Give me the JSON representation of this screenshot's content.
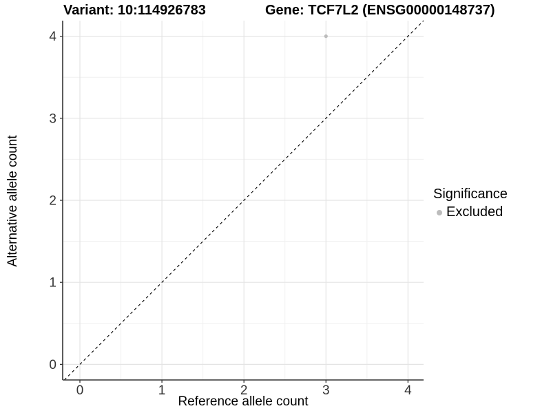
{
  "header": {
    "variant_title": "Variant: 10:114926783",
    "gene_title": "Gene: TCF7L2 (ENSG00000148737)"
  },
  "legend": {
    "title": "Significance",
    "items": [
      {
        "label": "Excluded",
        "marker": "circle-icon",
        "color": "#bcbcbc"
      }
    ]
  },
  "chart_data": {
    "type": "scatter",
    "title": "Variant: 10:114926783   Gene: TCF7L2 (ENSG00000148737)",
    "xlabel": "Reference allele count",
    "ylabel": "Alternative allele count",
    "xlim": [
      -0.21,
      4.19
    ],
    "ylim": [
      -0.19,
      4.19
    ],
    "xticks": [
      0,
      1,
      2,
      3,
      4
    ],
    "yticks": [
      0,
      1,
      2,
      3,
      4
    ],
    "xticks_minor": [
      0.5,
      1.5,
      2.5,
      3.5
    ],
    "yticks_minor": [
      0.5,
      1.5,
      2.5,
      3.5
    ],
    "grid": true,
    "legend_position": "right",
    "series": [
      {
        "name": "Excluded",
        "color": "#bcbcbc",
        "points": [
          [
            3,
            4
          ]
        ]
      }
    ],
    "reference_line": {
      "type": "identity",
      "slope": 1,
      "intercept": 0,
      "style": "dashed",
      "color": "#000000"
    }
  },
  "style": {
    "background": "#ffffff",
    "major_grid": "#e4e4e4",
    "minor_grid": "#f0f0f0",
    "axis_line": "#333333",
    "tick_color": "#333333",
    "tick_label_color": "#333333",
    "point_radius": 2.6,
    "title_color": "#000000"
  }
}
